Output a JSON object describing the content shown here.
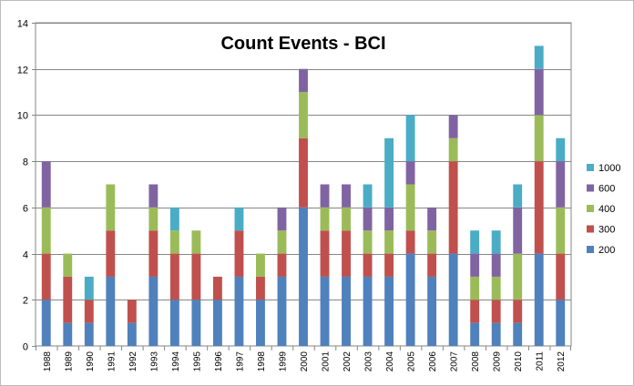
{
  "chart_data": {
    "type": "bar",
    "stacked": true,
    "title": "Count Events - BCI",
    "xlabel": "",
    "ylabel": "",
    "ylim": [
      0,
      14
    ],
    "yticks": [
      0,
      2,
      4,
      6,
      8,
      10,
      12,
      14
    ],
    "grid": true,
    "legend_position": "right",
    "categories": [
      "1988",
      "1989",
      "1990",
      "1991",
      "1992",
      "1993",
      "1994",
      "1995",
      "1996",
      "1997",
      "1998",
      "1999",
      "2000",
      "2001",
      "2002",
      "2003",
      "2004",
      "2005",
      "2006",
      "2007",
      "2008",
      "2009",
      "2010",
      "2011",
      "2012"
    ],
    "series": [
      {
        "name": "200",
        "color": "#4f81bd",
        "values": [
          2,
          1,
          1,
          3,
          1,
          3,
          2,
          2,
          2,
          3,
          2,
          3,
          6,
          3,
          3,
          3,
          3,
          4,
          3,
          4,
          1,
          1,
          1,
          4,
          2
        ]
      },
      {
        "name": "300",
        "color": "#c0504d",
        "values": [
          2,
          2,
          1,
          2,
          1,
          2,
          2,
          2,
          1,
          2,
          1,
          1,
          3,
          2,
          2,
          1,
          1,
          1,
          1,
          4,
          1,
          1,
          1,
          4,
          2
        ]
      },
      {
        "name": "400",
        "color": "#9bbb59",
        "values": [
          2,
          1,
          0,
          2,
          0,
          1,
          1,
          1,
          0,
          0,
          1,
          1,
          2,
          1,
          1,
          1,
          1,
          2,
          1,
          1,
          1,
          1,
          2,
          2,
          2
        ]
      },
      {
        "name": "600",
        "color": "#8064a2",
        "values": [
          2,
          0,
          0,
          0,
          0,
          1,
          0,
          0,
          0,
          0,
          0,
          1,
          1,
          1,
          1,
          1,
          1,
          1,
          1,
          1,
          1,
          1,
          2,
          2,
          2
        ]
      },
      {
        "name": "1000",
        "color": "#4bacc6",
        "values": [
          0,
          0,
          1,
          0,
          0,
          0,
          1,
          0,
          0,
          1,
          0,
          0,
          0,
          0,
          0,
          1,
          3,
          2,
          0,
          0,
          1,
          1,
          1,
          1,
          1
        ]
      }
    ]
  }
}
